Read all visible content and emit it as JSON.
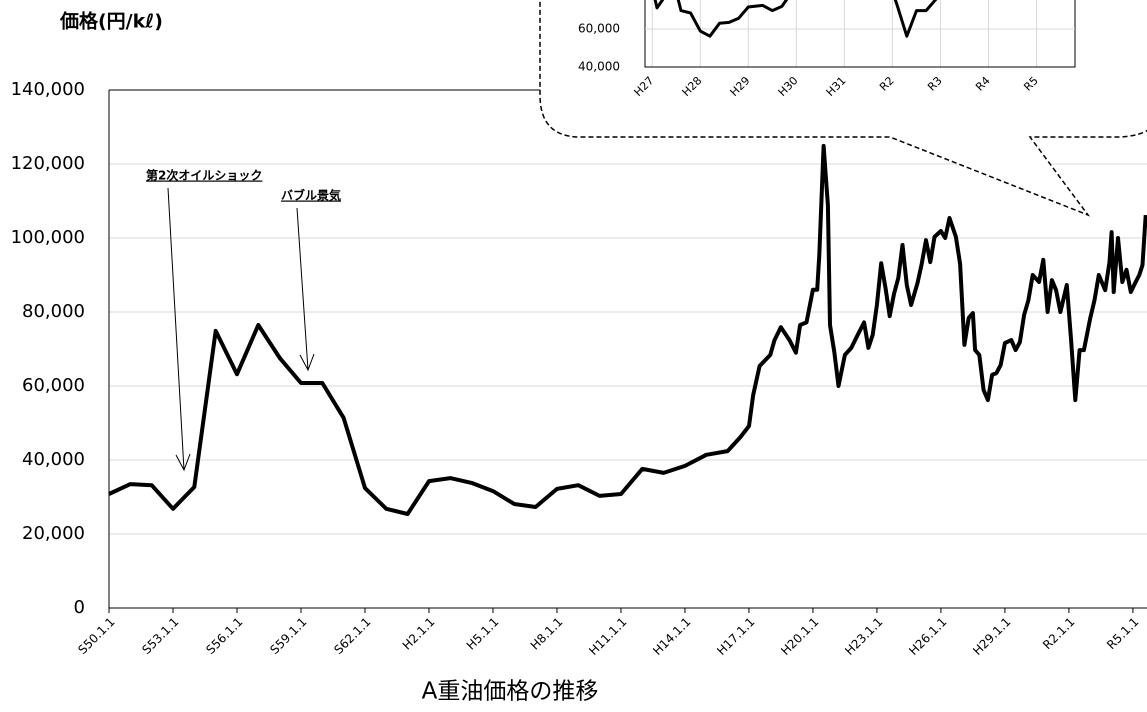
{
  "chart_data": {
    "type": "line",
    "title": "A重油価格の推移",
    "y_label": "価格(円/kℓ)",
    "color": "#000000",
    "grid": true,
    "xlim": [
      1975,
      2023.66
    ],
    "xticks": [
      {
        "value": 1975,
        "label": "S50.1.1"
      },
      {
        "value": 1978,
        "label": "S53.1.1"
      },
      {
        "value": 1981,
        "label": "S56.1.1"
      },
      {
        "value": 1984,
        "label": "S59.1.1"
      },
      {
        "value": 1987,
        "label": "S62.1.1"
      },
      {
        "value": 1990,
        "label": "H2.1.1"
      },
      {
        "value": 1993,
        "label": "H5.1.1"
      },
      {
        "value": 1996,
        "label": "H8.1.1"
      },
      {
        "value": 1999,
        "label": "H11.1.1"
      },
      {
        "value": 2002,
        "label": "H14.1.1"
      },
      {
        "value": 2005,
        "label": "H17.1.1"
      },
      {
        "value": 2008,
        "label": "H20.1.1"
      },
      {
        "value": 2011,
        "label": "H23.1.1"
      },
      {
        "value": 2014,
        "label": "H26.1.1"
      },
      {
        "value": 2017,
        "label": "H29.1.1"
      },
      {
        "value": 2020,
        "label": "R2.1.1"
      },
      {
        "value": 2023,
        "label": "R5.1.1"
      }
    ],
    "ylim": [
      0,
      140000
    ],
    "yticks": [
      0,
      {
        "value": 20000,
        "label": "20,000"
      },
      {
        "value": 40000,
        "label": "40,000"
      },
      {
        "value": 60000,
        "label": "60,000"
      },
      {
        "value": 80000,
        "label": "80,000"
      },
      {
        "value": 100000,
        "label": "100,000"
      },
      {
        "value": 120000,
        "label": "120,000"
      },
      {
        "value": 140000,
        "label": "140,000"
      }
    ],
    "x": [
      1975,
      1976,
      1977,
      1978,
      1979,
      1980,
      1981,
      1982,
      1983,
      1984,
      1985,
      1986,
      1987,
      1988,
      1989,
      1990,
      1991,
      1992,
      1993,
      1994,
      1995,
      1996,
      1997,
      1998,
      1999,
      2000,
      2001,
      2002,
      2003,
      2004,
      2004.6,
      2005,
      2005.2,
      2005.5,
      2006,
      2006.2,
      2006.5,
      2006.9,
      2007.2,
      2007.4,
      2007.7,
      2008,
      2008.2,
      2008.3,
      2008.5,
      2008.7,
      2008.8,
      2009,
      2009.2,
      2009.5,
      2009.8,
      2010.1,
      2010.4,
      2010.6,
      2010.8,
      2011,
      2011.2,
      2011.4,
      2011.6,
      2011.8,
      2012,
      2012.2,
      2012.4,
      2012.6,
      2012.9,
      2013.1,
      2013.3,
      2013.5,
      2013.7,
      2014,
      2014.2,
      2014.4,
      2014.7,
      2014.9,
      2015.1,
      2015.3,
      2015.5,
      2015.6,
      2015.8,
      2016,
      2016.2,
      2016.4,
      2016.6,
      2016.8,
      2017,
      2017.3,
      2017.5,
      2017.7,
      2017.9,
      2018.1,
      2018.3,
      2018.6,
      2018.8,
      2019,
      2019.2,
      2019.4,
      2019.6,
      2019.9,
      2020.1,
      2020.3,
      2020.5,
      2020.7,
      2021,
      2021.2,
      2021.4,
      2021.7,
      2021.9,
      2022,
      2022.1,
      2022.3,
      2022.5,
      2022.7,
      2022.9,
      2023.1,
      2023.3,
      2023.45,
      2023.6
    ],
    "values": [
      30800,
      33500,
      33200,
      26800,
      32700,
      74900,
      63200,
      76500,
      67600,
      60800,
      60800,
      51400,
      32400,
      26800,
      25400,
      34300,
      35100,
      33800,
      31600,
      28100,
      27300,
      32200,
      33200,
      30300,
      30800,
      37600,
      36500,
      38400,
      41400,
      42400,
      46200,
      49200,
      57600,
      65400,
      68400,
      72400,
      75900,
      72400,
      69000,
      76500,
      77200,
      86000,
      86000,
      95400,
      124900,
      108900,
      76500,
      69200,
      60000,
      68400,
      70300,
      73800,
      77200,
      70300,
      73800,
      81900,
      93200,
      86500,
      78900,
      84900,
      89200,
      98100,
      87300,
      81900,
      87800,
      93000,
      99400,
      93500,
      100300,
      101900,
      100000,
      105400,
      100300,
      93000,
      71100,
      78400,
      79700,
      69700,
      68400,
      58900,
      56200,
      63000,
      63500,
      65700,
      71600,
      72400,
      69700,
      71900,
      79200,
      83200,
      90000,
      88100,
      94100,
      80000,
      88600,
      85900,
      80000,
      87300,
      72400,
      56200,
      69700,
      69700,
      78400,
      83200,
      90000,
      85900,
      93500,
      101600,
      85400,
      100000,
      88100,
      91400,
      85400,
      87800,
      90000,
      92700,
      106200
    ],
    "annotations": [
      {
        "text": "第2次オイルショック"
      },
      {
        "text": "バブル景気"
      }
    ],
    "inset": {
      "xlim": [
        2014.85,
        2023.8
      ],
      "xticks": [
        {
          "value": 2015,
          "label": "H27"
        },
        {
          "value": 2016,
          "label": "H28"
        },
        {
          "value": 2017,
          "label": "H29"
        },
        {
          "value": 2018,
          "label": "H30"
        },
        {
          "value": 2019,
          "label": "H31"
        },
        {
          "value": 2020,
          "label": "R2"
        },
        {
          "value": 2021,
          "label": "R3"
        },
        {
          "value": 2022,
          "label": "R4"
        },
        {
          "value": 2023,
          "label": "R5"
        }
      ],
      "ylim": [
        40000,
        120000
      ],
      "yticks": [
        {
          "value": 40000,
          "label": "40,000"
        },
        {
          "value": 60000,
          "label": "60,000"
        }
      ]
    }
  }
}
